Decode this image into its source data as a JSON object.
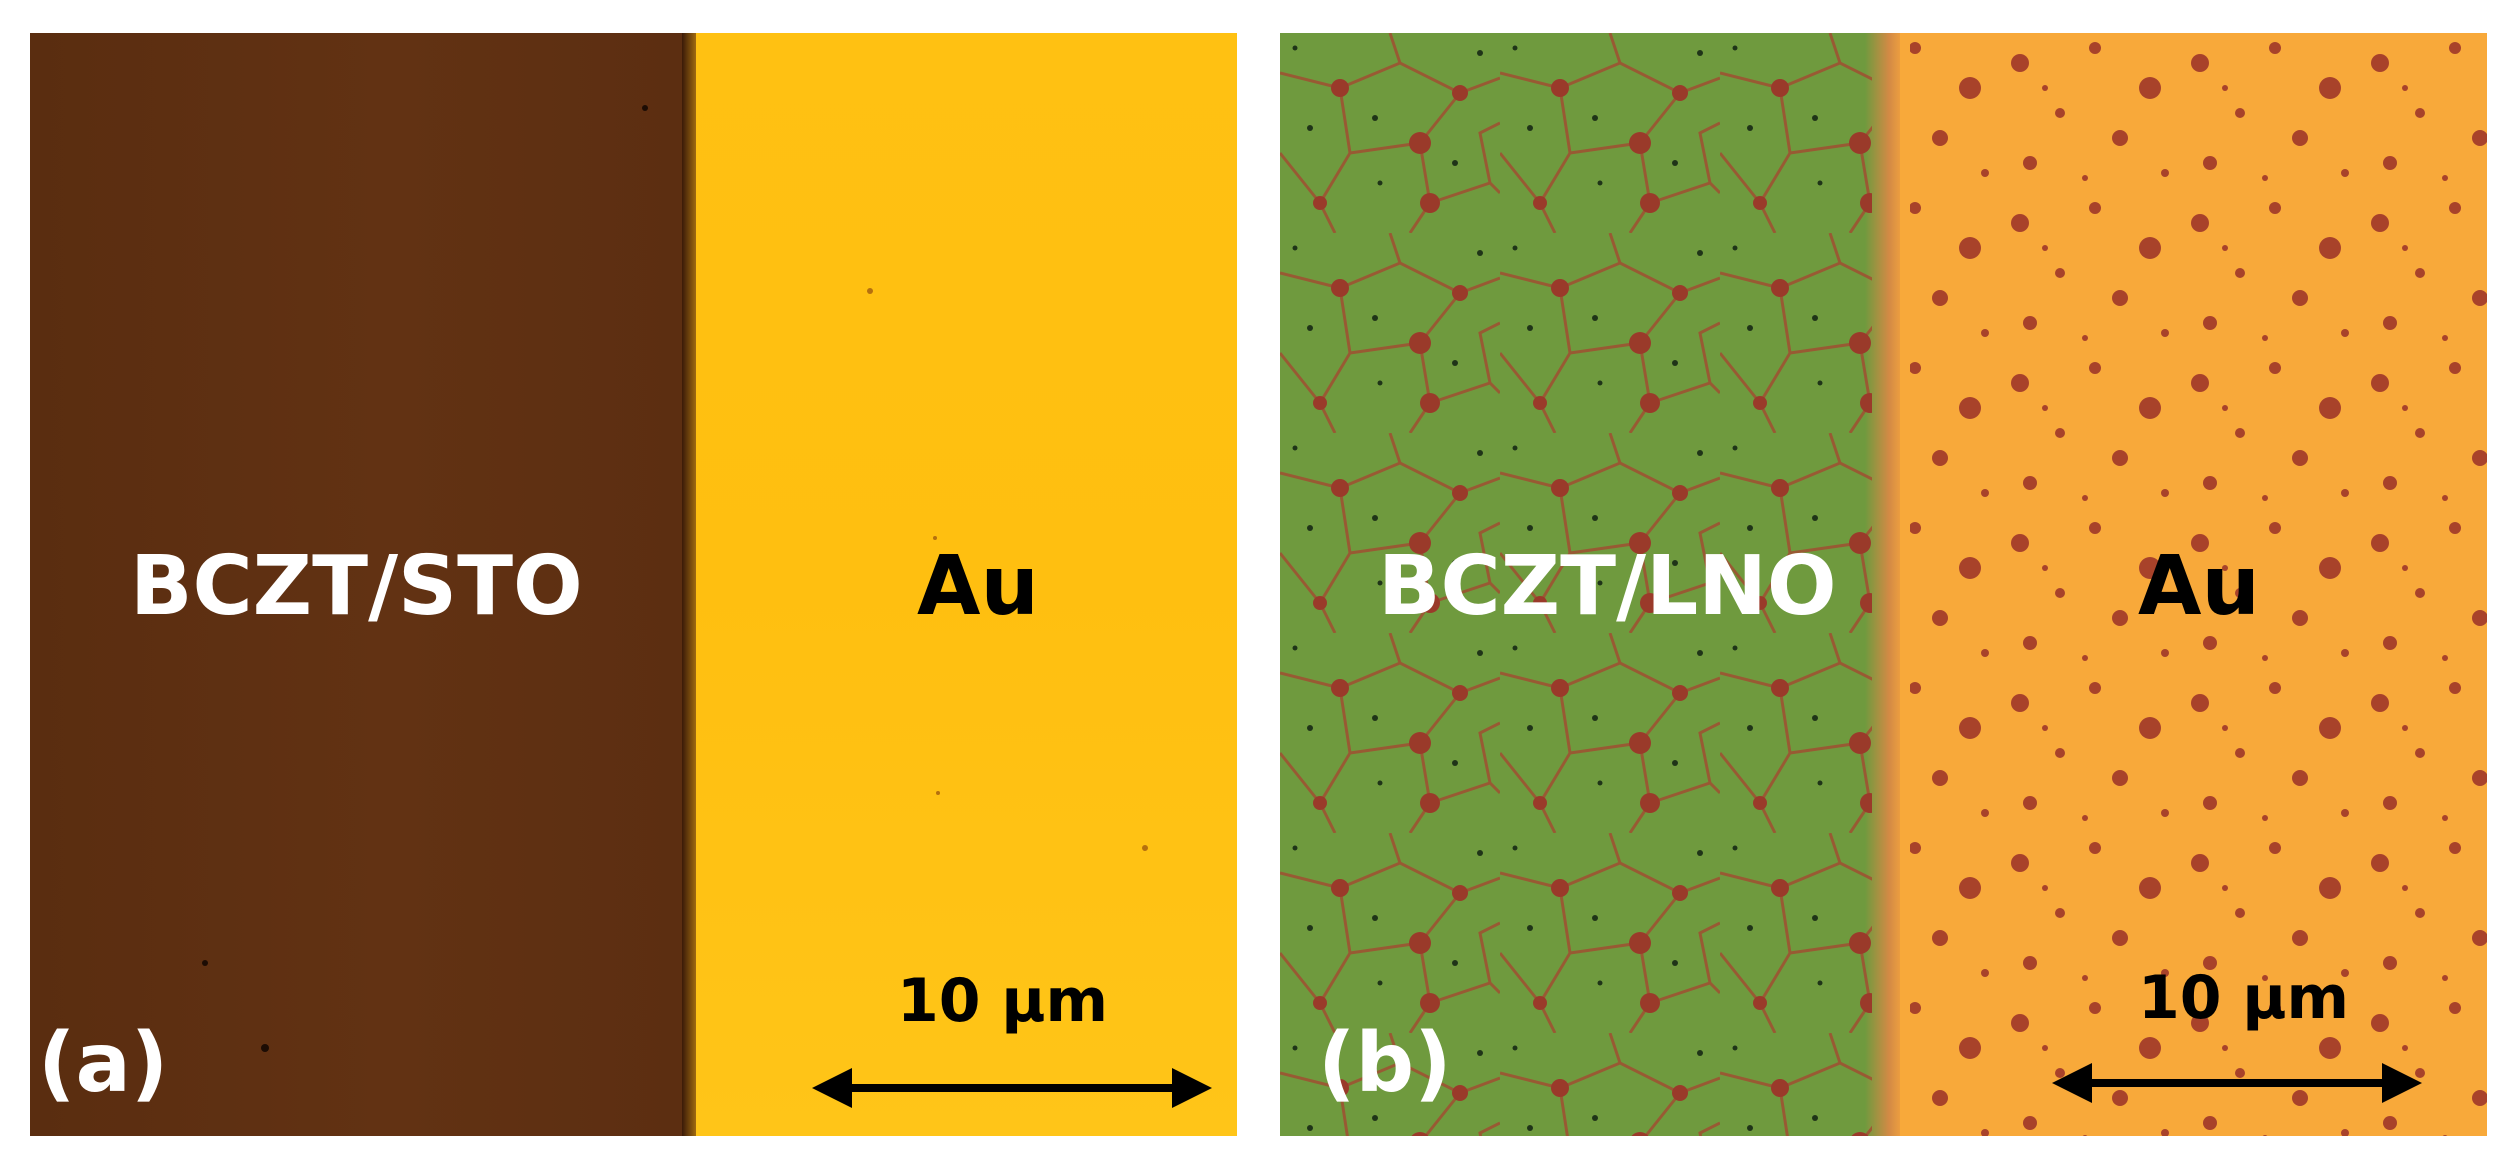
{
  "panels": [
    {
      "letter": "(a)",
      "left_label": "BCZT/STO",
      "right_label": "Au",
      "scale_bar": "10 μm",
      "colors": {
        "film": "#5e2f12",
        "gold": "#ffc112"
      }
    },
    {
      "letter": "(b)",
      "left_label": "BCZT/LNO",
      "right_label": "Au",
      "scale_bar": "10 μm",
      "colors": {
        "film": "#6f9a3e",
        "gold": "#f8a93a",
        "spots": "#9a3a2a"
      }
    }
  ]
}
